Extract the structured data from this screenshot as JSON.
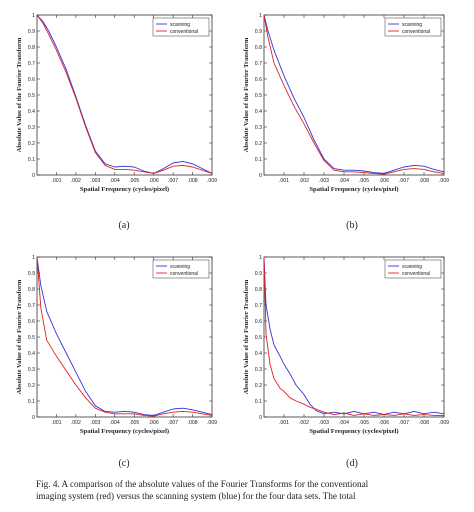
{
  "figure": {
    "caption_line1": "Fig. 4. A comparison of the absolute values of the Fourier Transforms for the conventional",
    "caption_line2": "imaging system (red) versus the scanning system (blue) for the four data sets.    The total"
  },
  "chart_data": [
    {
      "type": "line",
      "panel_label": "(a)",
      "xlabel": "Spatial Frequency (cycles/pixel)",
      "ylabel": "Absolute Value of the Fourier Transform",
      "xlim": [
        0,
        0.009
      ],
      "ylim": [
        0,
        1
      ],
      "x_ticks": [
        ".001",
        ".002",
        ".003",
        ".004",
        ".005",
        ".006",
        ".007",
        ".008",
        ".009"
      ],
      "y_ticks": [
        "0",
        "0.1",
        "0.2",
        "0.3",
        "0.4",
        "0.5",
        "0.6",
        "0.7",
        "0.8",
        "0.9",
        "1"
      ],
      "legend_position": "top-right",
      "colors": {
        "scanning": "#3333dd",
        "conventional": "#dd2222"
      },
      "series": [
        {
          "name": "scanning",
          "x": [
            0,
            0.0003,
            0.0006,
            0.001,
            0.0015,
            0.002,
            0.0025,
            0.003,
            0.0035,
            0.004,
            0.0045,
            0.005,
            0.0055,
            0.006,
            0.0065,
            0.007,
            0.0075,
            0.008,
            0.0085,
            0.009
          ],
          "y": [
            1.0,
            0.96,
            0.9,
            0.8,
            0.66,
            0.49,
            0.31,
            0.15,
            0.07,
            0.05,
            0.055,
            0.05,
            0.025,
            0.01,
            0.04,
            0.075,
            0.085,
            0.07,
            0.04,
            0.01
          ]
        },
        {
          "name": "conventional",
          "x": [
            0,
            0.0003,
            0.0006,
            0.001,
            0.0015,
            0.002,
            0.0025,
            0.003,
            0.0035,
            0.004,
            0.0045,
            0.005,
            0.0055,
            0.006,
            0.0065,
            0.007,
            0.0075,
            0.008,
            0.0085,
            0.009
          ],
          "y": [
            1.0,
            0.95,
            0.88,
            0.78,
            0.64,
            0.48,
            0.3,
            0.14,
            0.06,
            0.035,
            0.035,
            0.03,
            0.02,
            0.01,
            0.03,
            0.055,
            0.06,
            0.05,
            0.03,
            0.01
          ]
        }
      ]
    },
    {
      "type": "line",
      "panel_label": "(b)",
      "xlabel": "Spatial Frequency (cycles/pixel)",
      "ylabel": "Absolute Value of the Fourier Transform",
      "xlim": [
        0,
        0.009
      ],
      "ylim": [
        0,
        1
      ],
      "x_ticks": [
        ".001",
        ".002",
        ".003",
        ".004",
        ".005",
        ".006",
        ".007",
        ".008",
        ".009"
      ],
      "y_ticks": [
        "0",
        "0.1",
        "0.2",
        "0.3",
        "0.4",
        "0.5",
        "0.6",
        "0.7",
        "0.8",
        "0.9",
        "1"
      ],
      "legend_position": "top-right",
      "colors": {
        "scanning": "#3333dd",
        "conventional": "#dd2222"
      },
      "series": [
        {
          "name": "scanning",
          "x": [
            0,
            0.0002,
            0.0005,
            0.001,
            0.0015,
            0.002,
            0.0025,
            0.003,
            0.0035,
            0.004,
            0.0045,
            0.005,
            0.0055,
            0.006,
            0.0065,
            0.007,
            0.0075,
            0.008,
            0.0085,
            0.009
          ],
          "y": [
            1.0,
            0.9,
            0.78,
            0.62,
            0.48,
            0.36,
            0.22,
            0.1,
            0.04,
            0.03,
            0.03,
            0.025,
            0.015,
            0.01,
            0.03,
            0.05,
            0.06,
            0.055,
            0.035,
            0.02
          ]
        },
        {
          "name": "conventional",
          "x": [
            0,
            0.0002,
            0.0005,
            0.001,
            0.0015,
            0.002,
            0.0025,
            0.003,
            0.0035,
            0.004,
            0.0045,
            0.005,
            0.0055,
            0.006,
            0.0065,
            0.007,
            0.0075,
            0.008,
            0.0085,
            0.009
          ],
          "y": [
            1.0,
            0.86,
            0.7,
            0.56,
            0.43,
            0.32,
            0.2,
            0.09,
            0.03,
            0.02,
            0.02,
            0.015,
            0.01,
            0.005,
            0.02,
            0.035,
            0.04,
            0.035,
            0.02,
            0.01
          ]
        }
      ]
    },
    {
      "type": "line",
      "panel_label": "(c)",
      "xlabel": "Spatial Frequency (cycles/pixel)",
      "ylabel": "Absolute Value of the Fourier Transform",
      "xlim": [
        0,
        0.009
      ],
      "ylim": [
        0,
        1
      ],
      "x_ticks": [
        ".001",
        ".002",
        ".003",
        ".004",
        ".005",
        ".006",
        ".007",
        ".008",
        ".009"
      ],
      "y_ticks": [
        "0",
        "0.1",
        "0.2",
        "0.3",
        "0.4",
        "0.5",
        "0.6",
        "0.7",
        "0.8",
        "0.9",
        "1"
      ],
      "legend_position": "top-right",
      "colors": {
        "scanning": "#3333dd",
        "conventional": "#dd2222"
      },
      "series": [
        {
          "name": "scanning",
          "x": [
            0,
            0.0002,
            0.0005,
            0.001,
            0.0015,
            0.002,
            0.0025,
            0.003,
            0.0035,
            0.004,
            0.0045,
            0.005,
            0.0055,
            0.006,
            0.0065,
            0.007,
            0.0075,
            0.008,
            0.0085,
            0.009
          ],
          "y": [
            1.0,
            0.82,
            0.66,
            0.52,
            0.4,
            0.28,
            0.16,
            0.07,
            0.035,
            0.03,
            0.035,
            0.03,
            0.015,
            0.01,
            0.03,
            0.05,
            0.055,
            0.045,
            0.03,
            0.015
          ]
        },
        {
          "name": "conventional",
          "x": [
            0,
            0.0002,
            0.0005,
            0.001,
            0.0015,
            0.002,
            0.0025,
            0.003,
            0.0035,
            0.004,
            0.0045,
            0.005,
            0.0055,
            0.006,
            0.0065,
            0.007,
            0.0075,
            0.008,
            0.0085,
            0.009
          ],
          "y": [
            1.0,
            0.68,
            0.48,
            0.38,
            0.29,
            0.2,
            0.12,
            0.055,
            0.03,
            0.02,
            0.02,
            0.02,
            0.01,
            0.005,
            0.02,
            0.03,
            0.035,
            0.03,
            0.02,
            0.01
          ]
        }
      ]
    },
    {
      "type": "line",
      "panel_label": "(d)",
      "xlabel": "Spatial Frequency (cycles/pixel)",
      "ylabel": "Absolute Value of the Fourier Transform",
      "xlim": [
        0,
        0.009
      ],
      "ylim": [
        0,
        1
      ],
      "x_ticks": [
        ".001",
        ".002",
        ".003",
        ".004",
        ".005",
        ".006",
        ".007",
        ".008",
        ".009"
      ],
      "y_ticks": [
        "0",
        "0.1",
        "0.2",
        "0.3",
        "0.4",
        "0.5",
        "0.6",
        "0.7",
        "0.8",
        "0.9",
        "1"
      ],
      "legend_position": "top-right",
      "colors": {
        "scanning": "#3333dd",
        "conventional": "#dd2222"
      },
      "series": [
        {
          "name": "scanning",
          "x": [
            0,
            0.0001,
            0.0003,
            0.0005,
            0.0008,
            0.001,
            0.0013,
            0.0016,
            0.002,
            0.0023,
            0.0026,
            0.003,
            0.0035,
            0.004,
            0.0045,
            0.005,
            0.0055,
            0.006,
            0.0065,
            0.007,
            0.0075,
            0.008,
            0.0085,
            0.009
          ],
          "y": [
            1.0,
            0.7,
            0.55,
            0.45,
            0.38,
            0.33,
            0.27,
            0.2,
            0.14,
            0.08,
            0.04,
            0.02,
            0.03,
            0.02,
            0.035,
            0.02,
            0.03,
            0.015,
            0.03,
            0.02,
            0.035,
            0.02,
            0.03,
            0.02
          ]
        },
        {
          "name": "conventional",
          "x": [
            0,
            0.0001,
            0.0003,
            0.0005,
            0.0008,
            0.001,
            0.0013,
            0.0016,
            0.002,
            0.0023,
            0.0026,
            0.003,
            0.0035,
            0.004,
            0.0045,
            0.005,
            0.0055,
            0.006,
            0.0065,
            0.007,
            0.0075,
            0.008,
            0.0085,
            0.009
          ],
          "y": [
            1.0,
            0.52,
            0.33,
            0.24,
            0.18,
            0.16,
            0.12,
            0.1,
            0.08,
            0.06,
            0.05,
            0.03,
            0.015,
            0.025,
            0.01,
            0.02,
            0.01,
            0.015,
            0.01,
            0.02,
            0.01,
            0.015,
            0.01,
            0.01
          ]
        }
      ]
    }
  ]
}
